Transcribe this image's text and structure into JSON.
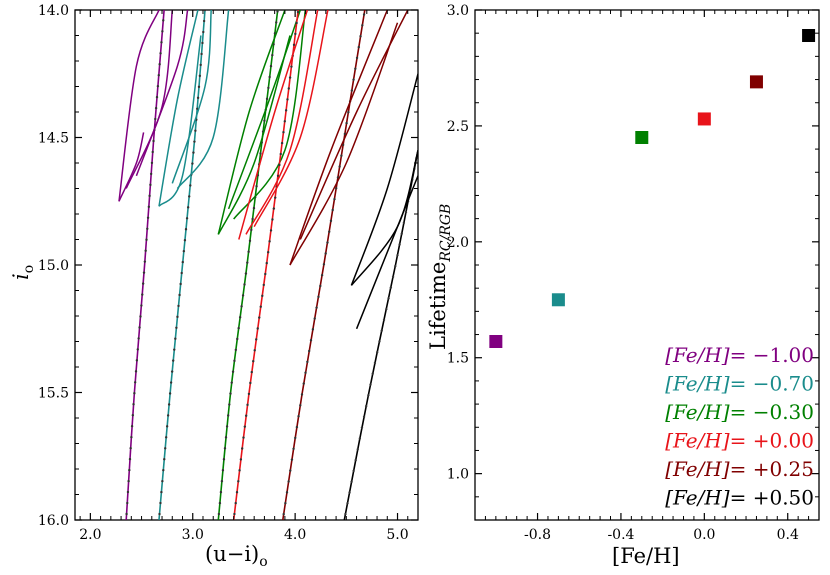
{
  "chart_data": [
    {
      "type": "line",
      "title": "",
      "xlabel": "(u−i)",
      "xlabel_sub": "o",
      "ylabel": "i",
      "ylabel_sub": "o",
      "xlim": [
        1.85,
        5.2
      ],
      "ylim": [
        16.0,
        14.0
      ],
      "y_inverted": true,
      "xticks": [
        2.0,
        3.0,
        4.0,
        5.0
      ],
      "xtick_labels": [
        "2.0",
        "3.0",
        "4.0",
        "5.0"
      ],
      "yticks": [
        14.0,
        14.5,
        15.0,
        15.5,
        16.0
      ],
      "ytick_labels": [
        "14.0",
        "14.5",
        "15.0",
        "15.5",
        "16.0"
      ],
      "series": [
        {
          "name": "[Fe/H]=-1.00",
          "color": "#800080",
          "rgb": [
            [
              2.35,
              16.0
            ],
            [
              2.43,
              15.5
            ],
            [
              2.53,
              15.0
            ],
            [
              2.62,
              14.5
            ],
            [
              2.72,
              14.0
            ]
          ],
          "loops": [
            [
              [
                2.28,
                14.75
              ],
              [
                2.45,
                14.22
              ],
              [
                2.67,
                14.0
              ]
            ],
            [
              [
                2.28,
                14.75
              ],
              [
                2.45,
                14.6
              ],
              [
                2.52,
                14.48
              ]
            ],
            [
              [
                2.35,
                14.7
              ],
              [
                2.7,
                14.38
              ],
              [
                2.8,
                14.0
              ]
            ],
            [
              [
                2.45,
                14.65
              ],
              [
                2.85,
                14.22
              ],
              [
                2.95,
                14.0
              ]
            ]
          ]
        },
        {
          "name": "[Fe/H]=-0.70",
          "color": "#1a8c8c",
          "rgb": [
            [
              2.67,
              16.0
            ],
            [
              2.78,
              15.5
            ],
            [
              2.9,
              15.0
            ],
            [
              3.02,
              14.5
            ],
            [
              3.12,
              14.0
            ]
          ],
          "loops": [
            [
              [
                2.67,
                14.77
              ],
              [
                2.85,
                14.35
              ],
              [
                3.05,
                14.0
              ]
            ],
            [
              [
                2.67,
                14.77
              ],
              [
                2.9,
                14.65
              ],
              [
                3.08,
                14.1
              ]
            ],
            [
              [
                2.8,
                14.68
              ],
              [
                3.12,
                14.3
              ],
              [
                3.18,
                14.0
              ]
            ],
            [
              [
                2.85,
                14.7
              ],
              [
                3.2,
                14.5
              ],
              [
                3.35,
                14.0
              ]
            ]
          ]
        },
        {
          "name": "[Fe/H]=-0.30",
          "color": "#008000",
          "rgb": [
            [
              3.25,
              16.0
            ],
            [
              3.37,
              15.5
            ],
            [
              3.53,
              15.0
            ],
            [
              3.68,
              14.5
            ],
            [
              3.83,
              14.0
            ]
          ],
          "loops": [
            [
              [
                3.25,
                14.88
              ],
              [
                3.55,
                14.4
              ],
              [
                3.9,
                14.0
              ]
            ],
            [
              [
                3.25,
                14.88
              ],
              [
                3.6,
                14.6
              ],
              [
                3.95,
                14.1
              ]
            ],
            [
              [
                3.35,
                14.78
              ],
              [
                3.75,
                14.35
              ],
              [
                4.05,
                14.0
              ]
            ],
            [
              [
                3.4,
                14.82
              ],
              [
                3.9,
                14.55
              ],
              [
                4.1,
                14.0
              ]
            ]
          ]
        },
        {
          "name": "[Fe/H]=+0.00",
          "color": "#e8141a",
          "rgb": [
            [
              3.4,
              16.0
            ],
            [
              3.55,
              15.5
            ],
            [
              3.72,
              15.0
            ],
            [
              3.88,
              14.5
            ],
            [
              4.03,
              14.0
            ]
          ],
          "loops": [
            [
              [
                3.45,
                14.9
              ],
              [
                3.8,
                14.4
              ],
              [
                4.12,
                14.0
              ]
            ],
            [
              [
                3.52,
                14.88
              ],
              [
                3.95,
                14.55
              ],
              [
                4.22,
                14.0
              ]
            ],
            [
              [
                3.6,
                14.85
              ],
              [
                4.05,
                14.5
              ],
              [
                4.32,
                14.0
              ]
            ]
          ]
        },
        {
          "name": "[Fe/H]=+0.25",
          "color": "#800000",
          "rgb": [
            [
              3.88,
              16.0
            ],
            [
              4.07,
              15.5
            ],
            [
              4.28,
              15.0
            ],
            [
              4.48,
              14.5
            ],
            [
              4.68,
              14.0
            ]
          ],
          "loops": [
            [
              [
                3.95,
                15.0
              ],
              [
                4.35,
                14.55
              ],
              [
                4.9,
                14.0
              ]
            ],
            [
              [
                3.95,
                15.0
              ],
              [
                4.5,
                14.6
              ],
              [
                5.0,
                14.05
              ]
            ],
            [
              [
                4.05,
                14.9
              ],
              [
                4.6,
                14.4
              ],
              [
                5.1,
                14.0
              ]
            ]
          ]
        },
        {
          "name": "[Fe/H]=+0.50",
          "color": "#000000",
          "rgb": [
            [
              4.48,
              16.0
            ],
            [
              4.72,
              15.5
            ],
            [
              4.98,
              15.0
            ],
            [
              5.2,
              14.55
            ]
          ],
          "loops": [
            [
              [
                4.55,
                15.08
              ],
              [
                4.9,
                14.7
              ],
              [
                5.2,
                14.25
              ]
            ],
            [
              [
                4.55,
                15.08
              ],
              [
                5.0,
                14.85
              ],
              [
                5.2,
                14.55
              ]
            ],
            [
              [
                4.6,
                15.25
              ],
              [
                5.05,
                14.8
              ],
              [
                5.2,
                14.65
              ]
            ]
          ]
        }
      ]
    },
    {
      "type": "scatter",
      "title": "",
      "xlabel": "[Fe/H]",
      "ylabel": "Lifetime",
      "ylabel_sub": "RC/RGB",
      "xlim": [
        -1.1,
        0.55
      ],
      "ylim": [
        0.8,
        3.0
      ],
      "xticks": [
        -0.8,
        -0.4,
        0.0,
        0.4
      ],
      "xtick_labels": [
        "-0.8",
        "-0.4",
        "0.0",
        "0.4"
      ],
      "yticks": [
        1.0,
        1.5,
        2.0,
        2.5,
        3.0
      ],
      "ytick_labels": [
        "1.0",
        "1.5",
        "2.0",
        "2.5",
        "3.0"
      ],
      "points": [
        {
          "x": -1.0,
          "y": 1.57,
          "color": "#800080"
        },
        {
          "x": -0.7,
          "y": 1.75,
          "color": "#1a8c8c"
        },
        {
          "x": -0.3,
          "y": 2.45,
          "color": "#008000"
        },
        {
          "x": 0.0,
          "y": 2.53,
          "color": "#e8141a"
        },
        {
          "x": 0.25,
          "y": 2.69,
          "color": "#800000"
        },
        {
          "x": 0.5,
          "y": 2.89,
          "color": "#000000"
        }
      ],
      "legend_position": "bottom-right",
      "legend": [
        {
          "label": "[Fe/H]",
          "value": "= −1.00",
          "color": "#800080"
        },
        {
          "label": "[Fe/H]",
          "value": "= −0.70",
          "color": "#1a8c8c"
        },
        {
          "label": "[Fe/H]",
          "value": "= −0.30",
          "color": "#008000"
        },
        {
          "label": "[Fe/H]",
          "value": "= +0.00",
          "color": "#e8141a"
        },
        {
          "label": "[Fe/H]",
          "value": "= +0.25",
          "color": "#800000"
        },
        {
          "label": "[Fe/H]",
          "value": "= +0.50",
          "color": "#000000"
        }
      ]
    }
  ]
}
